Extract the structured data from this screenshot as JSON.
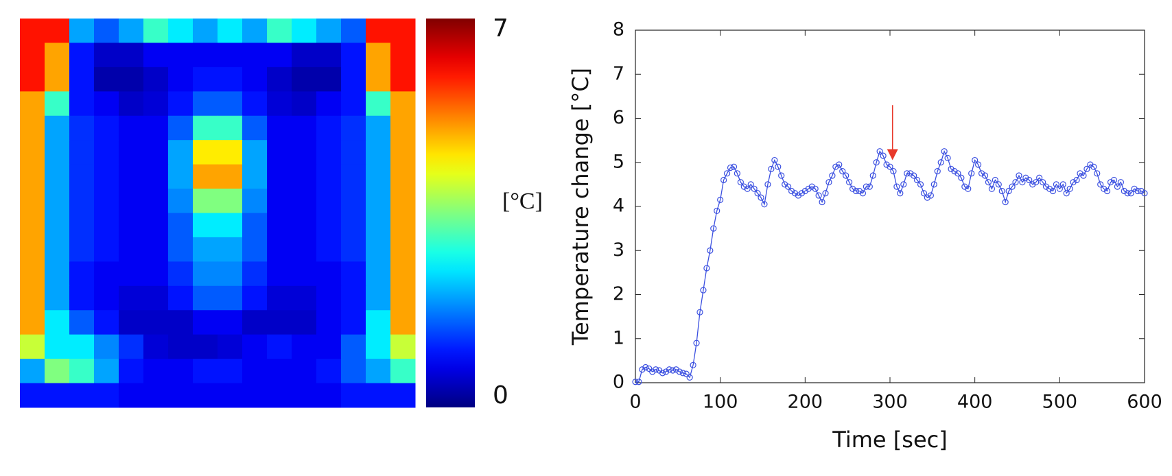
{
  "chart_data": [
    {
      "type": "heatmap",
      "colormap": "jet",
      "zlim": [
        0,
        7
      ],
      "zticks": [
        0,
        7
      ],
      "colorbar_label": "[°C]",
      "z": [
        [
          6,
          6,
          2,
          1.5,
          2,
          3,
          2.5,
          2,
          2.5,
          2,
          3,
          2.5,
          2,
          1.5,
          6,
          6
        ],
        [
          6,
          5,
          1,
          0.5,
          0.5,
          0.8,
          0.8,
          0.8,
          0.8,
          0.8,
          0.8,
          0.5,
          0.5,
          1,
          5,
          6
        ],
        [
          6,
          5,
          1,
          0.3,
          0.3,
          0.5,
          0.8,
          1,
          1,
          0.8,
          0.5,
          0.3,
          0.3,
          1,
          5,
          6
        ],
        [
          5,
          3,
          1,
          0.8,
          0.5,
          0.6,
          1,
          1.5,
          1.5,
          1,
          0.6,
          0.5,
          0.8,
          1,
          3,
          5
        ],
        [
          5,
          2,
          1.2,
          1,
          0.8,
          0.8,
          1.5,
          3,
          3,
          1.5,
          0.8,
          0.8,
          1,
          1.2,
          2,
          5
        ],
        [
          5,
          2,
          1.2,
          1,
          0.8,
          0.8,
          2,
          4.5,
          4.5,
          2,
          0.8,
          0.8,
          1,
          1.2,
          2,
          5
        ],
        [
          5,
          2,
          1.2,
          1,
          0.8,
          0.8,
          2,
          5,
          5,
          2,
          0.8,
          0.8,
          1,
          1.2,
          2,
          5
        ],
        [
          5,
          2,
          1.2,
          1,
          0.8,
          0.8,
          1.8,
          3.5,
          3.5,
          1.8,
          0.8,
          0.8,
          1,
          1.2,
          2,
          5
        ],
        [
          5,
          2,
          1.2,
          1,
          0.8,
          0.8,
          1.5,
          2.5,
          2.5,
          1.5,
          0.8,
          0.8,
          1,
          1.2,
          2,
          5
        ],
        [
          5,
          2,
          1.2,
          1,
          0.8,
          0.8,
          1.5,
          2,
          2,
          1.5,
          0.8,
          0.8,
          1,
          1.2,
          2,
          5
        ],
        [
          5,
          2,
          1,
          0.8,
          0.8,
          0.8,
          1.2,
          1.8,
          1.8,
          1.2,
          0.8,
          0.8,
          0.8,
          1,
          2,
          5
        ],
        [
          5,
          2,
          1,
          0.8,
          0.6,
          0.6,
          1,
          1.5,
          1.5,
          1,
          0.6,
          0.6,
          0.8,
          1,
          2,
          5
        ],
        [
          5,
          2.5,
          1.5,
          1,
          0.5,
          0.5,
          0.5,
          0.8,
          0.8,
          0.5,
          0.5,
          0.5,
          0.8,
          1,
          2.5,
          5
        ],
        [
          4,
          2.5,
          2.5,
          1.8,
          1.2,
          0.6,
          0.5,
          0.5,
          0.6,
          0.8,
          1,
          0.8,
          0.8,
          1.5,
          2.5,
          4
        ],
        [
          2,
          3.5,
          3,
          2,
          1,
          0.8,
          0.8,
          1,
          1,
          0.8,
          0.8,
          0.8,
          1,
          1.5,
          2,
          3
        ],
        [
          1,
          1,
          1,
          1,
          0.8,
          0.8,
          0.8,
          0.8,
          0.8,
          0.8,
          0.8,
          0.8,
          0.8,
          1,
          1,
          1
        ]
      ]
    },
    {
      "type": "line",
      "xlabel": "Time [sec]",
      "ylabel": "Temperature change [°C]",
      "color": "#3a4fe0",
      "xlim": [
        0,
        600
      ],
      "xticks": [
        0,
        100,
        200,
        300,
        400,
        500,
        600
      ],
      "ylim": [
        0,
        8
      ],
      "yticks": [
        0,
        1,
        2,
        3,
        4,
        5,
        6,
        7,
        8
      ],
      "arrow": {
        "x": 303,
        "y_start": 6.3,
        "y_end": 5.05,
        "color": "#e8392b"
      },
      "x": [
        0,
        4,
        8,
        12,
        16,
        20,
        24,
        28,
        32,
        36,
        40,
        44,
        48,
        52,
        56,
        60,
        64,
        68,
        72,
        76,
        80,
        84,
        88,
        92,
        96,
        100,
        104,
        108,
        112,
        116,
        120,
        124,
        128,
        132,
        136,
        140,
        144,
        148,
        152,
        156,
        160,
        164,
        168,
        172,
        176,
        180,
        184,
        188,
        192,
        196,
        200,
        204,
        208,
        212,
        216,
        220,
        224,
        228,
        232,
        236,
        240,
        244,
        248,
        252,
        256,
        260,
        264,
        268,
        272,
        276,
        280,
        284,
        288,
        292,
        296,
        300,
        304,
        308,
        312,
        316,
        320,
        324,
        328,
        332,
        336,
        340,
        344,
        348,
        352,
        356,
        360,
        364,
        368,
        372,
        376,
        380,
        384,
        388,
        392,
        396,
        400,
        404,
        408,
        412,
        416,
        420,
        424,
        428,
        432,
        436,
        440,
        444,
        448,
        452,
        456,
        460,
        464,
        468,
        472,
        476,
        480,
        484,
        488,
        492,
        496,
        500,
        504,
        508,
        512,
        516,
        520,
        524,
        528,
        532,
        536,
        540,
        544,
        548,
        552,
        556,
        560,
        564,
        568,
        572,
        576,
        580,
        584,
        588,
        592,
        596,
        600
      ],
      "values": [
        0.02,
        0.02,
        0.3,
        0.35,
        0.32,
        0.25,
        0.3,
        0.28,
        0.22,
        0.25,
        0.3,
        0.28,
        0.3,
        0.25,
        0.22,
        0.2,
        0.12,
        0.4,
        0.9,
        1.6,
        2.1,
        2.6,
        3.0,
        3.5,
        3.9,
        4.15,
        4.6,
        4.75,
        4.88,
        4.9,
        4.75,
        4.55,
        4.45,
        4.4,
        4.5,
        4.4,
        4.3,
        4.2,
        4.05,
        4.5,
        4.85,
        5.05,
        4.9,
        4.7,
        4.5,
        4.45,
        4.35,
        4.3,
        4.25,
        4.3,
        4.35,
        4.4,
        4.45,
        4.4,
        4.25,
        4.1,
        4.3,
        4.55,
        4.7,
        4.9,
        4.95,
        4.8,
        4.7,
        4.55,
        4.4,
        4.35,
        4.35,
        4.3,
        4.45,
        4.45,
        4.7,
        5.0,
        5.25,
        5.15,
        4.95,
        4.9,
        4.8,
        4.45,
        4.3,
        4.5,
        4.75,
        4.75,
        4.7,
        4.6,
        4.5,
        4.3,
        4.2,
        4.25,
        4.5,
        4.8,
        5.0,
        5.25,
        5.1,
        4.85,
        4.8,
        4.75,
        4.65,
        4.45,
        4.4,
        4.75,
        5.05,
        4.95,
        4.75,
        4.7,
        4.55,
        4.4,
        4.6,
        4.5,
        4.35,
        4.1,
        4.35,
        4.45,
        4.55,
        4.7,
        4.55,
        4.65,
        4.6,
        4.5,
        4.55,
        4.65,
        4.55,
        4.45,
        4.4,
        4.35,
        4.5,
        4.4,
        4.5,
        4.3,
        4.4,
        4.55,
        4.6,
        4.75,
        4.7,
        4.85,
        4.95,
        4.9,
        4.75,
        4.5,
        4.4,
        4.35,
        4.55,
        4.6,
        4.45,
        4.55,
        4.35,
        4.3,
        4.3,
        4.4,
        4.35,
        4.35,
        4.3
      ]
    }
  ]
}
